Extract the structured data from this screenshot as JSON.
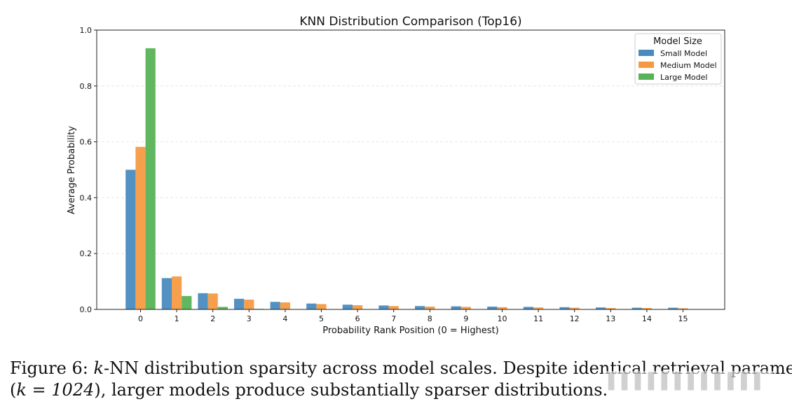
{
  "chart_data": {
    "type": "bar",
    "title": "KNN Distribution Comparison (Top16)",
    "xlabel": "Probability Rank Position (0 = Highest)",
    "ylabel": "Average Probability",
    "ylim": [
      0,
      1.0
    ],
    "yticks": [
      "0.0",
      "0.2",
      "0.4",
      "0.6",
      "0.8",
      "1.0"
    ],
    "categories": [
      "0",
      "1",
      "2",
      "3",
      "4",
      "5",
      "6",
      "7",
      "8",
      "9",
      "10",
      "11",
      "12",
      "13",
      "14",
      "15"
    ],
    "grid": true,
    "legend": {
      "title": "Model Size",
      "placement": "top-right"
    },
    "series": [
      {
        "name": "Small Model",
        "color": "#4a8bbf",
        "values": [
          0.5,
          0.112,
          0.058,
          0.038,
          0.027,
          0.021,
          0.017,
          0.014,
          0.012,
          0.011,
          0.01,
          0.009,
          0.008,
          0.007,
          0.006,
          0.006
        ]
      },
      {
        "name": "Medium Model",
        "color": "#f59a43",
        "values": [
          0.582,
          0.118,
          0.057,
          0.035,
          0.025,
          0.019,
          0.015,
          0.012,
          0.01,
          0.009,
          0.008,
          0.007,
          0.006,
          0.005,
          0.005,
          0.004
        ]
      },
      {
        "name": "Large Model",
        "color": "#57b357",
        "values": [
          0.935,
          0.048,
          0.009,
          0.002,
          0.001,
          0.0005,
          0.0003,
          0.0002,
          0.0002,
          0.0001,
          0.0001,
          0.0001,
          0.0001,
          0.0001,
          0.0001,
          0.0001
        ]
      }
    ]
  },
  "caption": {
    "prefix": "Figure 6: ",
    "k_symbol": "k",
    "line1_rest": "-NN distribution sparsity across model scales.  Despite identical retrieval parameters",
    "line2_open": "(",
    "k_equals": "k = 1024",
    "line2_rest": "), larger models produce substantially sparser distributions."
  }
}
